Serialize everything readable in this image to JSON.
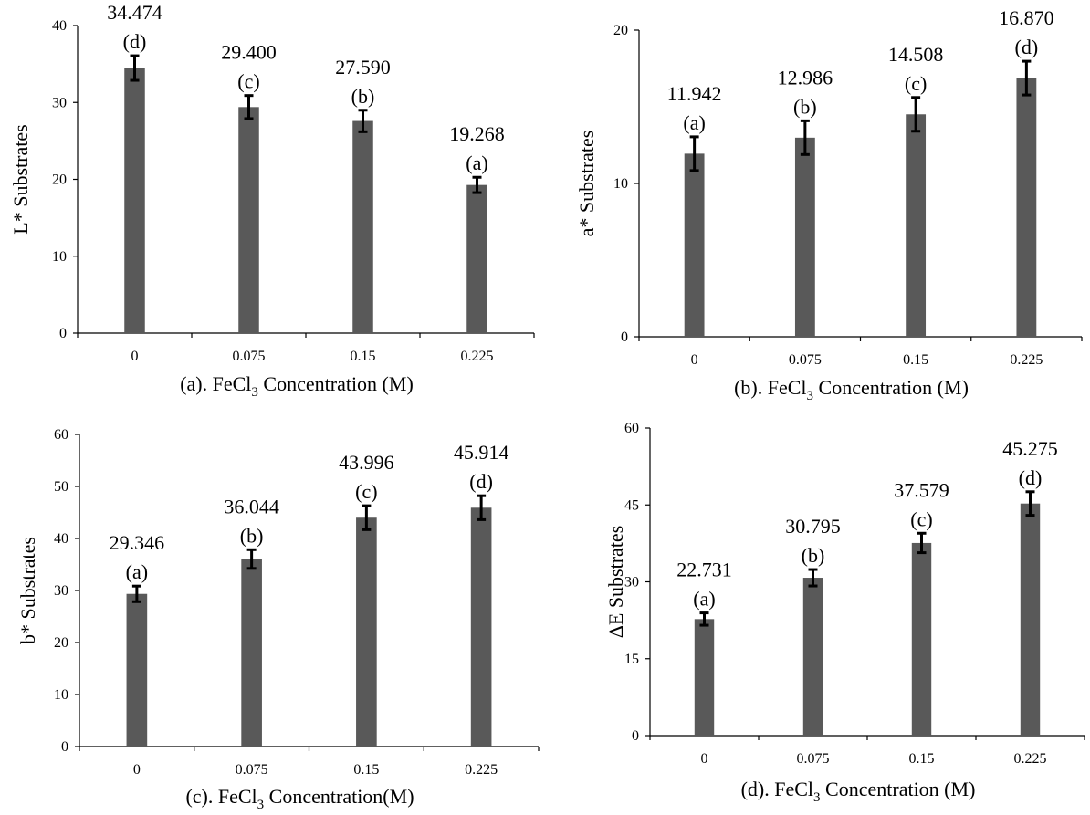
{
  "colors": {
    "bar": "#595959",
    "axis": "#000000",
    "text": "#000000"
  },
  "chart_data": [
    {
      "type": "bar",
      "title": "",
      "categories": [
        "0",
        "0.075",
        "0.15",
        "0.225"
      ],
      "values": [
        34.474,
        29.4,
        27.59,
        19.268
      ],
      "errors": [
        1.6,
        1.5,
        1.4,
        1.0
      ],
      "value_labels": [
        "34.474",
        "29.400",
        "27.590",
        "19.268"
      ],
      "group_labels": [
        "(d)",
        "(c)",
        "(b)",
        "(a)"
      ],
      "ylabel": "L* Substrates",
      "xlabel": {
        "pre": "(a). FeCl",
        "sub": "3",
        "post": " Concentration (M)"
      },
      "ylim": [
        0,
        40
      ],
      "yticks": [
        "0",
        "10",
        "20",
        "30",
        "40"
      ]
    },
    {
      "type": "bar",
      "title": "",
      "categories": [
        "0",
        "0.075",
        "0.15",
        "0.225"
      ],
      "values": [
        11.942,
        12.986,
        14.508,
        16.87
      ],
      "errors": [
        1.1,
        1.1,
        1.1,
        1.1
      ],
      "value_labels": [
        "11.942",
        "12.986",
        "14.508",
        "16.870"
      ],
      "group_labels": [
        "(a)",
        "(b)",
        "(c)",
        "(d)"
      ],
      "ylabel": "a* Substrates",
      "xlabel": {
        "pre": "(b). FeCl",
        "sub": "3",
        "post": " Concentration (M)"
      },
      "ylim": [
        0,
        20
      ],
      "yticks": [
        "0",
        "10",
        "20"
      ]
    },
    {
      "type": "bar",
      "title": "",
      "categories": [
        "0",
        "0.075",
        "0.15",
        "0.225"
      ],
      "values": [
        29.346,
        36.044,
        43.996,
        45.914
      ],
      "errors": [
        1.5,
        1.8,
        2.3,
        2.3
      ],
      "value_labels": [
        "29.346",
        "36.044",
        "43.996",
        "45.914"
      ],
      "group_labels": [
        "(a)",
        "(b)",
        "(c)",
        "(d)"
      ],
      "ylabel": "b* Substrates",
      "xlabel": {
        "pre": "(c). FeCl",
        "sub": "3",
        "post": " Concentration(M)"
      },
      "ylim": [
        0,
        60
      ],
      "yticks": [
        "0",
        "10",
        "20",
        "30",
        "40",
        "50",
        "60"
      ]
    },
    {
      "type": "bar",
      "title": "",
      "categories": [
        "0",
        "0.075",
        "0.15",
        "0.225"
      ],
      "values": [
        22.731,
        30.795,
        37.579,
        45.275
      ],
      "errors": [
        1.2,
        1.6,
        1.9,
        2.3
      ],
      "value_labels": [
        "22.731",
        "30.795",
        "37.579",
        "45.275"
      ],
      "group_labels": [
        "(a)",
        "(b)",
        "(c)",
        "(d)"
      ],
      "ylabel": "ΔE Substrates",
      "xlabel": {
        "pre": "(d). FeCl",
        "sub": "3",
        "post": " Concentration (M)"
      },
      "ylim": [
        0,
        60
      ],
      "yticks": [
        "0",
        "15",
        "30",
        "45",
        "60"
      ]
    }
  ]
}
